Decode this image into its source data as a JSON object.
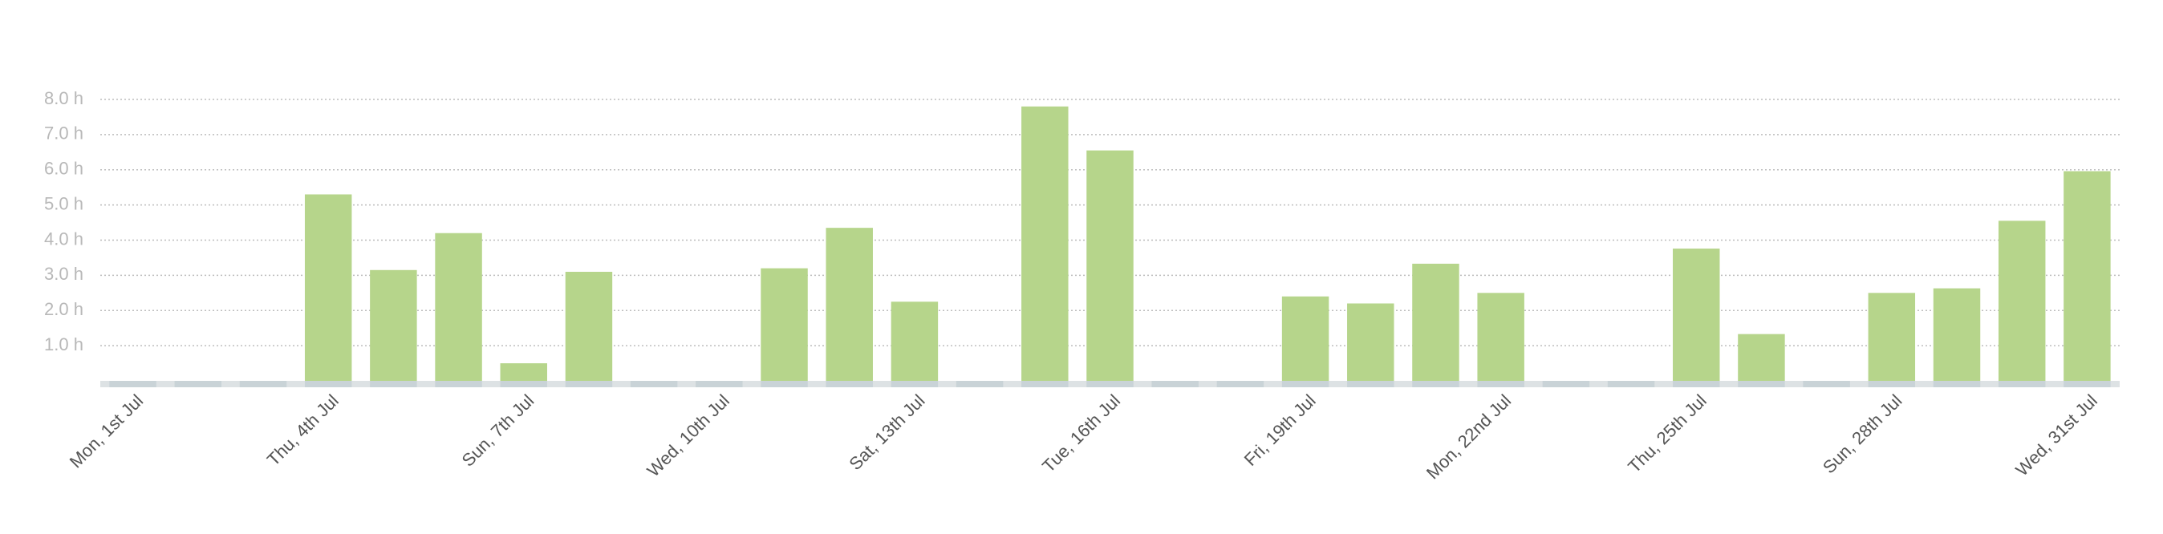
{
  "chart_data": {
    "type": "bar",
    "categories": [
      "Mon, 1st Jul",
      null,
      null,
      "Thu, 4th Jul",
      null,
      null,
      "Sun, 7th Jul",
      null,
      null,
      "Wed, 10th Jul",
      null,
      null,
      "Sat, 13th Jul",
      null,
      null,
      "Tue, 16th Jul",
      null,
      null,
      "Fri, 19th Jul",
      null,
      null,
      "Mon, 22nd Jul",
      null,
      null,
      "Thu, 25th Jul",
      null,
      null,
      "Sun, 28th Jul",
      null,
      null,
      "Wed, 31st Jul"
    ],
    "values": [
      0,
      0,
      0,
      5.3,
      3.15,
      4.2,
      0.5,
      3.1,
      0,
      0,
      3.2,
      4.35,
      2.25,
      0,
      7.8,
      6.55,
      0,
      0,
      2.4,
      2.2,
      3.33,
      2.5,
      0,
      0,
      3.76,
      1.33,
      0,
      2.5,
      2.63,
      4.55,
      5.96
    ],
    "color": "#b6d58b",
    "ylim": [
      0,
      8.5
    ],
    "yticks": [
      {
        "value": 1,
        "label": "1.0 h"
      },
      {
        "value": 2,
        "label": "2.0 h"
      },
      {
        "value": 3,
        "label": "3.0 h"
      },
      {
        "value": 4,
        "label": "4.0 h"
      },
      {
        "value": 5,
        "label": "5.0 h"
      },
      {
        "value": 6,
        "label": "6.0 h"
      },
      {
        "value": 7,
        "label": "7.0 h"
      },
      {
        "value": 8,
        "label": "8.0 h"
      }
    ],
    "grid": true
  }
}
